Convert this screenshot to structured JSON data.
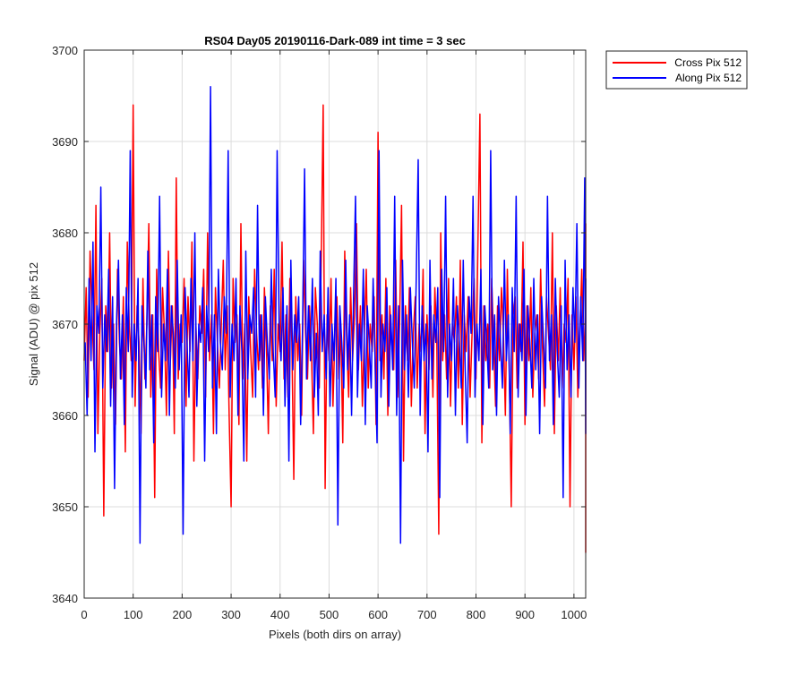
{
  "chart_data": {
    "type": "line",
    "title": "RS04 Day05 20190116-Dark-089 int time = 3 sec",
    "xlabel": "Pixels (both dirs on array)",
    "ylabel": "Signal (ADU) @ pix 512",
    "xlim": [
      0,
      1024
    ],
    "ylim": [
      3640,
      3700
    ],
    "xticks": [
      "0",
      "100",
      "200",
      "300",
      "400",
      "500",
      "600",
      "700",
      "800",
      "900",
      "1000"
    ],
    "yticks": [
      "3640",
      "3650",
      "3660",
      "3670",
      "3680",
      "3690",
      "3700"
    ],
    "grid": true,
    "legend": "outside-top-right",
    "series": [
      {
        "name": "Cross Pix 512",
        "color": "#ff0000",
        "x_start": 0,
        "x_step": 4,
        "values": [
          3666,
          3674,
          3662,
          3678,
          3671,
          3665,
          3683,
          3658,
          3669,
          3675,
          3649,
          3672,
          3667,
          3680,
          3663,
          3670,
          3659,
          3676,
          3668,
          3664,
          3673,
          3656,
          3679,
          3670,
          3666,
          3694,
          3661,
          3672,
          3668,
          3658,
          3675,
          3664,
          3670,
          3681,
          3662,
          3671,
          3651,
          3676,
          3667,
          3663,
          3674,
          3669,
          3660,
          3678,
          3666,
          3672,
          3658,
          3686,
          3664,
          3670,
          3668,
          3675,
          3661,
          3673,
          3667,
          3679,
          3655,
          3670,
          3664,
          3672,
          3669,
          3676,
          3662,
          3680,
          3666,
          3671,
          3658,
          3674,
          3668,
          3663,
          3670,
          3677,
          3665,
          3672,
          3660,
          3650,
          3675,
          3668,
          3671,
          3659,
          3681,
          3664,
          3670,
          3655,
          3673,
          3667,
          3662,
          3676,
          3669,
          3665,
          3671,
          3663,
          3674,
          3668,
          3658,
          3672,
          3666,
          3676,
          3661,
          3670,
          3667,
          3679,
          3664,
          3671,
          3662,
          3675,
          3668,
          3653,
          3673,
          3666,
          3670,
          3660,
          3677,
          3669,
          3664,
          3672,
          3667,
          3658,
          3674,
          3670,
          3663,
          3677,
          3694,
          3652,
          3671,
          3666,
          3675,
          3661,
          3669,
          3673,
          3664,
          3670,
          3657,
          3678,
          3668,
          3662,
          3674,
          3666,
          3671,
          3681,
          3665,
          3672,
          3661,
          3669,
          3676,
          3663,
          3670,
          3667,
          3673,
          3659,
          3691,
          3666,
          3671,
          3664,
          3675,
          3660,
          3672,
          3668,
          3665,
          3677,
          3662,
          3670,
          3683,
          3655,
          3672,
          3666,
          3674,
          3661,
          3669,
          3673,
          3663,
          3670,
          3667,
          3676,
          3658,
          3671,
          3665,
          3672,
          3662,
          3674,
          3668,
          3647,
          3680,
          3666,
          3671,
          3664,
          3675,
          3661,
          3670,
          3668,
          3673,
          3663,
          3677,
          3659,
          3671,
          3667,
          3673,
          3662,
          3669,
          3675,
          3664,
          3679,
          3693,
          3657,
          3672,
          3666,
          3670,
          3663,
          3675,
          3668,
          3661,
          3672,
          3666,
          3674,
          3669,
          3660,
          3676,
          3665,
          3650,
          3671,
          3673,
          3663,
          3670,
          3667,
          3679,
          3659,
          3672,
          3666,
          3674,
          3662,
          3669,
          3671,
          3664,
          3676,
          3667,
          3661,
          3673,
          3669,
          3665,
          3680,
          3658,
          3672,
          3666,
          3674,
          3663,
          3670,
          3668,
          3675,
          3650,
          3671,
          3665,
          3673,
          3662,
          3669,
          3676,
          3666,
          3672,
          3664,
          3681,
          3660,
          3670,
          3667,
          3674,
          3663,
          3645,
          3677,
          3670
        ]
      },
      {
        "name": "Along Pix 512",
        "color": "#0000ff",
        "x_start": 2,
        "x_step": 4,
        "values": [
          3668,
          3660,
          3675,
          3666,
          3679,
          3656,
          3672,
          3669,
          3685,
          3663,
          3671,
          3667,
          3676,
          3661,
          3673,
          3652,
          3670,
          3677,
          3664,
          3671,
          3659,
          3674,
          3667,
          3689,
          3662,
          3670,
          3666,
          3675,
          3646,
          3672,
          3668,
          3663,
          3678,
          3665,
          3671,
          3657,
          3673,
          3667,
          3684,
          3662,
          3670,
          3666,
          3676,
          3660,
          3672,
          3669,
          3663,
          3677,
          3665,
          3671,
          3647,
          3674,
          3668,
          3662,
          3675,
          3666,
          3680,
          3661,
          3670,
          3668,
          3674,
          3655,
          3672,
          3667,
          3696,
          3663,
          3671,
          3658,
          3676,
          3668,
          3665,
          3673,
          3669,
          3689,
          3662,
          3670,
          3666,
          3675,
          3660,
          3672,
          3667,
          3655,
          3678,
          3664,
          3671,
          3669,
          3674,
          3662,
          3683,
          3666,
          3671,
          3660,
          3673,
          3668,
          3664,
          3676,
          3667,
          3662,
          3689,
          3670,
          3666,
          3674,
          3661,
          3672,
          3655,
          3677,
          3665,
          3671,
          3668,
          3673,
          3659,
          3670,
          3687,
          3664,
          3672,
          3666,
          3675,
          3662,
          3669,
          3660,
          3678,
          3667,
          3671,
          3664,
          3674,
          3661,
          3670,
          3666,
          3675,
          3648,
          3672,
          3668,
          3663,
          3677,
          3665,
          3671,
          3660,
          3673,
          3684,
          3662,
          3670,
          3666,
          3676,
          3659,
          3672,
          3668,
          3663,
          3675,
          3666,
          3657,
          3689,
          3662,
          3670,
          3667,
          3674,
          3661,
          3671,
          3665,
          3684,
          3660,
          3672,
          3646,
          3677,
          3665,
          3671,
          3662,
          3674,
          3668,
          3663,
          3675,
          3688,
          3660,
          3672,
          3666,
          3670,
          3656,
          3677,
          3664,
          3671,
          3668,
          3674,
          3651,
          3676,
          3667,
          3684,
          3662,
          3670,
          3666,
          3675,
          3660,
          3672,
          3668,
          3663,
          3677,
          3665,
          3657,
          3673,
          3669,
          3684,
          3662,
          3670,
          3666,
          3676,
          3659,
          3672,
          3668,
          3663,
          3689,
          3665,
          3671,
          3660,
          3673,
          3668,
          3663,
          3677,
          3666,
          3671,
          3658,
          3674,
          3667,
          3684,
          3662,
          3670,
          3666,
          3676,
          3660,
          3672,
          3668,
          3663,
          3675,
          3665,
          3671,
          3658,
          3673,
          3668,
          3663,
          3684,
          3666,
          3671,
          3659,
          3675,
          3667,
          3662,
          3672,
          3651,
          3677,
          3665,
          3671,
          3662,
          3674,
          3668,
          3681,
          3663,
          3673,
          3666,
          3686,
          3658,
          3675
        ]
      }
    ]
  }
}
